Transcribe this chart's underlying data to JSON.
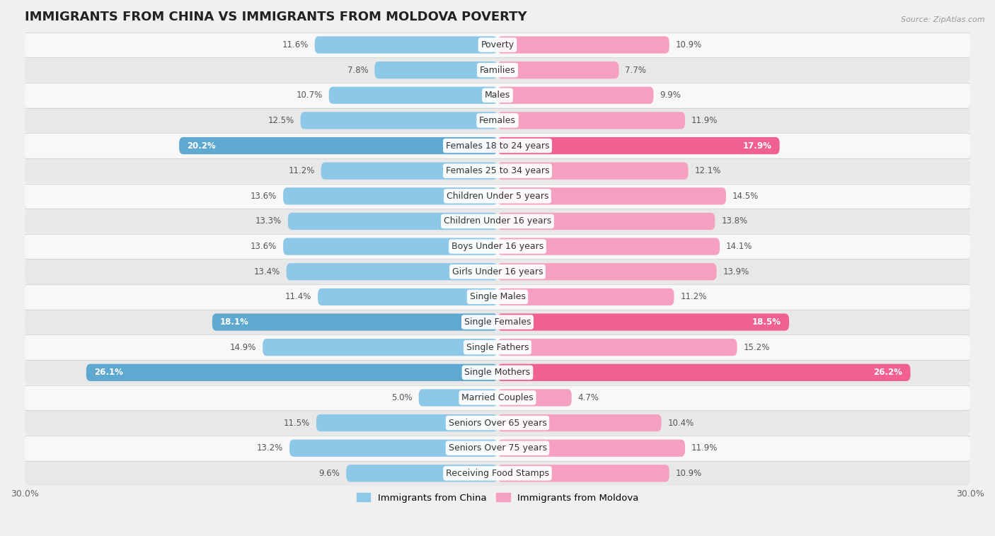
{
  "title": "IMMIGRANTS FROM CHINA VS IMMIGRANTS FROM MOLDOVA POVERTY",
  "source": "Source: ZipAtlas.com",
  "categories": [
    "Poverty",
    "Families",
    "Males",
    "Females",
    "Females 18 to 24 years",
    "Females 25 to 34 years",
    "Children Under 5 years",
    "Children Under 16 years",
    "Boys Under 16 years",
    "Girls Under 16 years",
    "Single Males",
    "Single Females",
    "Single Fathers",
    "Single Mothers",
    "Married Couples",
    "Seniors Over 65 years",
    "Seniors Over 75 years",
    "Receiving Food Stamps"
  ],
  "china_values": [
    11.6,
    7.8,
    10.7,
    12.5,
    20.2,
    11.2,
    13.6,
    13.3,
    13.6,
    13.4,
    11.4,
    18.1,
    14.9,
    26.1,
    5.0,
    11.5,
    13.2,
    9.6
  ],
  "moldova_values": [
    10.9,
    7.7,
    9.9,
    11.9,
    17.9,
    12.1,
    14.5,
    13.8,
    14.1,
    13.9,
    11.2,
    18.5,
    15.2,
    26.2,
    4.7,
    10.4,
    11.9,
    10.9
  ],
  "china_color": "#8DC8E8",
  "moldova_color": "#F5A0C0",
  "china_highlight_color": "#5FA8D0",
  "moldova_highlight_color": "#F06090",
  "highlight_rows": [
    4,
    11,
    13
  ],
  "max_value": 30.0,
  "background_color": "#f0f0f0",
  "row_bg_light": "#f8f8f8",
  "row_bg_dark": "#e8e8e8",
  "bar_height": 0.68,
  "title_fontsize": 13,
  "label_fontsize": 9,
  "value_fontsize": 8.5,
  "legend_label_china": "Immigrants from China",
  "legend_label_moldova": "Immigrants from Moldova"
}
